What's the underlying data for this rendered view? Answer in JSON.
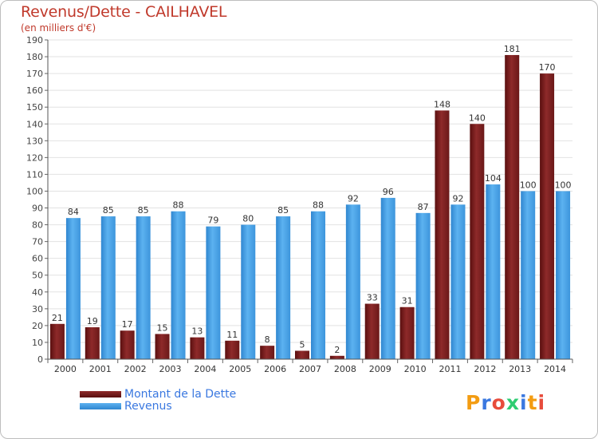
{
  "header": {
    "title": "Revenus/Dette - CAILHAVEL",
    "subtitle": "(en milliers d'€)"
  },
  "logo": {
    "letters": [
      "P",
      "r",
      "o",
      "x",
      "i",
      "t",
      "i"
    ],
    "colors": [
      "#f39c12",
      "#3a78e0",
      "#e74c3c",
      "#2ecc71",
      "#3a78e0",
      "#f39c12",
      "#e74c3c"
    ]
  },
  "chart_data": {
    "type": "bar",
    "categories": [
      "2000",
      "2001",
      "2002",
      "2003",
      "2004",
      "2005",
      "2006",
      "2007",
      "2008",
      "2009",
      "2010",
      "2011",
      "2012",
      "2013",
      "2014"
    ],
    "series": [
      {
        "name": "Montant de la Dette",
        "color": "#7b1f1f",
        "values": [
          21,
          19,
          17,
          15,
          13,
          11,
          8,
          5,
          2,
          33,
          31,
          148,
          140,
          181,
          170
        ]
      },
      {
        "name": "Revenus",
        "color": "#4aa3e8",
        "values": [
          84,
          85,
          85,
          88,
          79,
          80,
          85,
          88,
          92,
          96,
          87,
          92,
          104,
          100,
          100
        ]
      }
    ],
    "ylim": [
      0,
      190
    ],
    "ytick_step": 10,
    "grid": true,
    "legend_position": "bottom-left"
  }
}
